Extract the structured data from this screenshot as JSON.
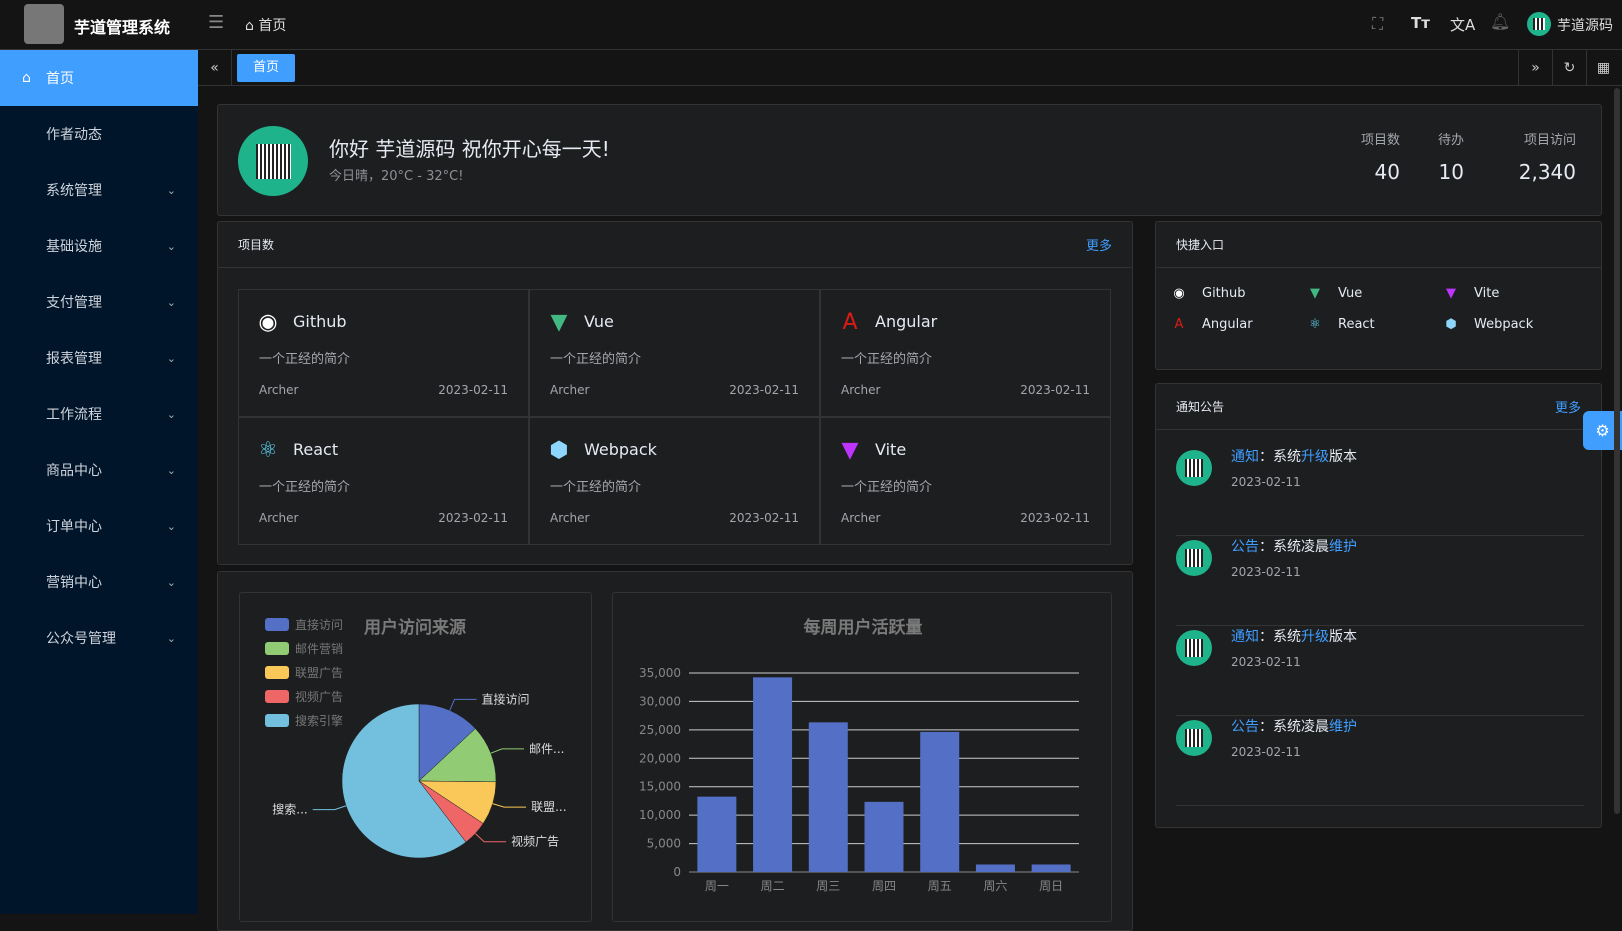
{
  "header": {
    "app_title": "芋道管理系统",
    "breadcrumb": "首页",
    "user_name": "芋道源码",
    "icons": [
      "menu-fold-icon",
      "home-icon",
      "fullscreen-icon",
      "font-size-icon",
      "translate-icon",
      "bell-icon"
    ]
  },
  "sidebar": {
    "items": [
      {
        "label": "首页",
        "active": true
      },
      {
        "label": "作者动态"
      },
      {
        "label": "系统管理",
        "has_children": true
      },
      {
        "label": "基础设施",
        "has_children": true
      },
      {
        "label": "支付管理",
        "has_children": true
      },
      {
        "label": "报表管理",
        "has_children": true
      },
      {
        "label": "工作流程",
        "has_children": true
      },
      {
        "label": "商品中心",
        "has_children": true
      },
      {
        "label": "订单中心",
        "has_children": true
      },
      {
        "label": "营销中心",
        "has_children": true
      },
      {
        "label": "公众号管理",
        "has_children": true
      }
    ]
  },
  "tabs": {
    "items": [
      "首页"
    ]
  },
  "welcome": {
    "greeting": "你好 芋道源码 祝你开心每一天!",
    "weather": "今日晴，20°C - 32°C!",
    "stats": [
      {
        "label": "项目数",
        "value": "40"
      },
      {
        "label": "待办",
        "value": "10"
      },
      {
        "label": "项目访问",
        "value": "2,340"
      }
    ]
  },
  "projects": {
    "title": "项目数",
    "more": "更多",
    "items": [
      {
        "name": "Github",
        "desc": "一个正经的简介",
        "author": "Archer",
        "date": "2023-02-11",
        "icon": "github-icon",
        "color": "#ffffff"
      },
      {
        "name": "Vue",
        "desc": "一个正经的简介",
        "author": "Archer",
        "date": "2023-02-11",
        "icon": "vue-icon",
        "color": "#42b883"
      },
      {
        "name": "Angular",
        "desc": "一个正经的简介",
        "author": "Archer",
        "date": "2023-02-11",
        "icon": "angular-icon",
        "color": "#dd1b16"
      },
      {
        "name": "React",
        "desc": "一个正经的简介",
        "author": "Archer",
        "date": "2023-02-11",
        "icon": "react-icon",
        "color": "#61dafb"
      },
      {
        "name": "Webpack",
        "desc": "一个正经的简介",
        "author": "Archer",
        "date": "2023-02-11",
        "icon": "webpack-icon",
        "color": "#8ed6fb"
      },
      {
        "name": "Vite",
        "desc": "一个正经的简介",
        "author": "Archer",
        "date": "2023-02-11",
        "icon": "vite-icon",
        "color": "#bd34fe"
      }
    ]
  },
  "quick": {
    "title": "快捷入口",
    "items": [
      {
        "name": "Github",
        "icon": "github-icon"
      },
      {
        "name": "Vue",
        "icon": "vue-icon"
      },
      {
        "name": "Vite",
        "icon": "vite-icon"
      },
      {
        "name": "Angular",
        "icon": "angular-icon"
      },
      {
        "name": "React",
        "icon": "react-icon"
      },
      {
        "name": "Webpack",
        "icon": "webpack-icon"
      }
    ]
  },
  "notices": {
    "title": "通知公告",
    "more": "更多",
    "items": [
      {
        "type": "通知",
        "pre": "：系统",
        "hl": "升级",
        "post": "版本",
        "date": "2023-02-11"
      },
      {
        "type": "公告",
        "pre": "：系统凌晨",
        "hl": "维护",
        "post": "",
        "date": "2023-02-11"
      },
      {
        "type": "通知",
        "pre": "：系统",
        "hl": "升级",
        "post": "版本",
        "date": "2023-02-11"
      },
      {
        "type": "公告",
        "pre": "：系统凌晨",
        "hl": "维护",
        "post": "",
        "date": "2023-02-11"
      }
    ]
  },
  "chart_data": [
    {
      "type": "pie",
      "title": "用户访问来源",
      "legend_position": "top-left",
      "categories": [
        "直接访问",
        "邮件营销",
        "联盟广告",
        "视频广告",
        "搜索引擎"
      ],
      "labels": [
        "直接访问",
        "邮件...",
        "联盟...",
        "视频广告",
        "搜索..."
      ],
      "values": [
        335,
        310,
        234,
        135,
        1548
      ],
      "colors": [
        "#5470c6",
        "#91cc75",
        "#fac858",
        "#ee6666",
        "#73c0de"
      ]
    },
    {
      "type": "bar",
      "title": "每周用户活跃量",
      "categories": [
        "周一",
        "周二",
        "周三",
        "周四",
        "周五",
        "周六",
        "周日"
      ],
      "values": [
        13253,
        34235,
        26321,
        12340,
        24643,
        1322,
        1324
      ],
      "ylim": [
        0,
        35000
      ],
      "yticks": [
        "0",
        "5,000",
        "10,000",
        "15,000",
        "20,000",
        "25,000",
        "30,000",
        "35,000"
      ],
      "grid": true,
      "color": "#5470c6"
    }
  ],
  "colors": {
    "accent": "#409eff",
    "sidebar_bg": "#001529"
  }
}
